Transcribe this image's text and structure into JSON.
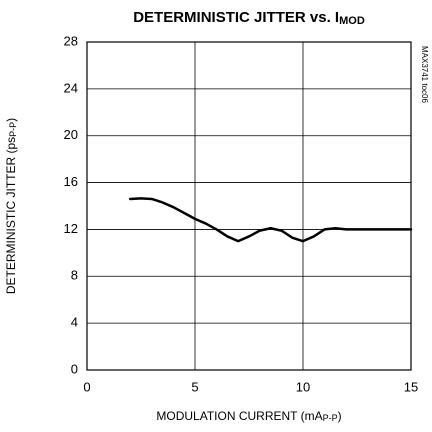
{
  "chart_data": {
    "type": "line",
    "title": {
      "text": "DETERMINISTIC JITTER vs. I",
      "subscript": "MOD"
    },
    "x_label": {
      "text": "MODULATION CURRENT (mA",
      "subscript": "P-P",
      "suffix": ")"
    },
    "y_label": {
      "text": "DETERMINISTIC JITTER (ps",
      "subscript": "P-P",
      "suffix": ")"
    },
    "annotation": "MAX3741 toc06",
    "x": [
      2,
      2.5,
      3,
      3.5,
      4,
      4.5,
      5,
      5.5,
      6,
      6.5,
      7,
      7.5,
      8,
      8.5,
      9,
      9.5,
      10,
      10.5,
      11,
      11.5,
      12,
      13,
      14,
      15
    ],
    "values": [
      14.6,
      14.65,
      14.6,
      14.3,
      13.9,
      13.4,
      12.9,
      12.5,
      12.0,
      11.4,
      11.0,
      11.4,
      11.9,
      12.1,
      11.9,
      11.3,
      11.0,
      11.4,
      12.0,
      12.1,
      12.0,
      12.0,
      12.0,
      12.0
    ],
    "color": "#000000",
    "xlim": [
      0,
      15
    ],
    "xticks": [
      0,
      5,
      10,
      15
    ],
    "ylim": [
      0,
      28
    ],
    "yticks": [
      0,
      4,
      8,
      12,
      16,
      20,
      24,
      28
    ],
    "grid": true
  }
}
